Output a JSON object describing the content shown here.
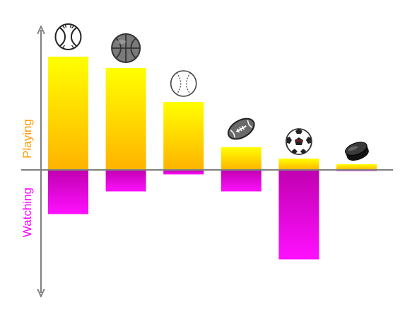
{
  "chart_data": {
    "type": "bar",
    "categories": [
      "tennis",
      "basketball",
      "baseball",
      "american-football",
      "soccer",
      "hockey"
    ],
    "series": [
      {
        "name": "Playing",
        "values": [
          100,
          90,
          60,
          20,
          10,
          5
        ]
      },
      {
        "name": "Watching",
        "values": [
          -39,
          -19,
          -4,
          -19,
          -79,
          -1
        ]
      }
    ],
    "ylabel_top": "Playing",
    "ylabel_bottom": "Watching",
    "ylim": [
      -112,
      128
    ],
    "grid": false,
    "legend": "none",
    "icons": [
      "tennis-ball-icon",
      "basketball-icon",
      "baseball-icon",
      "american-football-icon",
      "soccer-ball-icon",
      "hockey-puck-icon"
    ]
  },
  "colors": {
    "playing_top": "#ffff00",
    "playing_bottom": "#ffb300",
    "watching_top": "#c000b0",
    "watching_bottom": "#ff10ff",
    "axis": "#7f7f7f",
    "playing_label": "#ff9a00",
    "watching_label": "#ff00ff"
  }
}
